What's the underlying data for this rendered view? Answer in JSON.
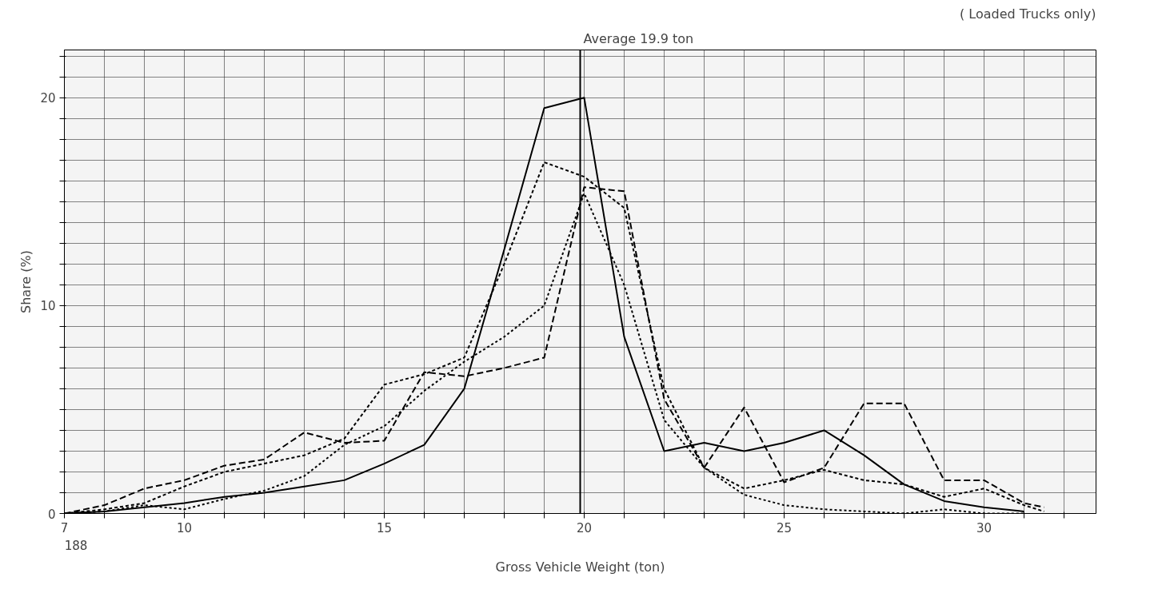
{
  "chart_data": {
    "type": "line",
    "xlabel": "Gross Vehicle Weight (ton)",
    "ylabel": "Share (%)",
    "xlim": [
      7,
      32.8
    ],
    "ylim": [
      0,
      22.3
    ],
    "xticks": [
      7,
      {
        "value": 8,
        "label": null
      },
      {
        "value": 9,
        "label": null
      },
      10,
      {
        "value": 11,
        "label": null
      },
      {
        "value": 12,
        "label": null
      },
      {
        "value": 13,
        "label": null
      },
      {
        "value": 14,
        "label": null
      },
      15,
      {
        "value": 16,
        "label": null
      },
      {
        "value": 17,
        "label": null
      },
      {
        "value": 18,
        "label": null
      },
      {
        "value": 19,
        "label": null
      },
      20,
      {
        "value": 21,
        "label": null
      },
      {
        "value": 22,
        "label": null
      },
      {
        "value": 23,
        "label": null
      },
      {
        "value": 24,
        "label": null
      },
      25,
      {
        "value": 26,
        "label": null
      },
      {
        "value": 27,
        "label": null
      },
      {
        "value": 28,
        "label": null
      },
      {
        "value": 29,
        "label": null
      },
      30,
      {
        "value": 31,
        "label": null
      },
      {
        "value": 32,
        "label": null
      }
    ],
    "yticks": [
      0,
      {
        "value": 1,
        "label": null
      },
      {
        "value": 2,
        "label": null
      },
      {
        "value": 3,
        "label": null
      },
      {
        "value": 4,
        "label": null
      },
      {
        "value": 5,
        "label": null
      },
      {
        "value": 6,
        "label": null
      },
      {
        "value": 7,
        "label": null
      },
      {
        "value": 8,
        "label": null
      },
      {
        "value": 9,
        "label": null
      },
      10,
      {
        "value": 11,
        "label": null
      },
      {
        "value": 12,
        "label": null
      },
      {
        "value": 13,
        "label": null
      },
      {
        "value": 14,
        "label": null
      },
      {
        "value": 15,
        "label": null
      },
      {
        "value": 16,
        "label": null
      },
      {
        "value": 17,
        "label": null
      },
      {
        "value": 18,
        "label": null
      },
      {
        "value": 19,
        "label": null
      },
      20,
      {
        "value": 21,
        "label": null
      },
      {
        "value": 22,
        "label": null
      }
    ],
    "grid": true,
    "marker": "none",
    "series": [
      {
        "color": "#000000",
        "line_style": "solid",
        "x": [
          7,
          8,
          9,
          10,
          11,
          12,
          13,
          14,
          15,
          16,
          17,
          18,
          19,
          20,
          21,
          22,
          23,
          24,
          25,
          26,
          27,
          28,
          29,
          30,
          31
        ],
        "values": [
          0,
          0.1,
          0.3,
          0.5,
          0.8,
          1.0,
          1.3,
          1.6,
          2.4,
          3.3,
          6.0,
          12.7,
          19.5,
          20.0,
          8.5,
          3.0,
          3.4,
          3.0,
          3.4,
          4.0,
          2.8,
          1.4,
          0.6,
          0.3,
          0.1
        ]
      },
      {
        "color": "#000000",
        "line_style": "dashed",
        "x": [
          7,
          8,
          9,
          10,
          11,
          12,
          13,
          14,
          15,
          16,
          17,
          18,
          19,
          20,
          21,
          22,
          23,
          24,
          25,
          26,
          27,
          28,
          29,
          30,
          31,
          31.5
        ],
        "values": [
          0,
          0.4,
          1.2,
          1.6,
          2.3,
          2.6,
          3.9,
          3.4,
          3.5,
          6.8,
          6.6,
          7.0,
          7.5,
          15.7,
          15.5,
          5.5,
          2.2,
          5.1,
          1.5,
          2.2,
          5.3,
          5.3,
          1.6,
          1.6,
          0.5,
          0.3
        ]
      },
      {
        "color": "#000000",
        "line_style": "dashed",
        "x": [
          7,
          8,
          9,
          10,
          11,
          12,
          13,
          14,
          15,
          16,
          17,
          18,
          19,
          20,
          21,
          22,
          23,
          24,
          25,
          26,
          27,
          28,
          29,
          30,
          31,
          31.5
        ],
        "values": [
          0,
          0.2,
          0.5,
          1.3,
          2.0,
          2.4,
          2.8,
          3.6,
          6.2,
          6.7,
          7.5,
          12.0,
          16.9,
          16.2,
          14.7,
          6.0,
          2.2,
          1.2,
          1.6,
          2.1,
          1.6,
          1.4,
          0.8,
          1.2,
          0.4,
          0.1
        ]
      },
      {
        "color": "#000000",
        "line_style": "dotted",
        "x": [
          7,
          8,
          9,
          10,
          11,
          12,
          13,
          14,
          15,
          16,
          17,
          18,
          19,
          20,
          21,
          22,
          23,
          24,
          25,
          26,
          27,
          28,
          29,
          30,
          31
        ],
        "values": [
          0,
          0.1,
          0.4,
          0.2,
          0.7,
          1.1,
          1.8,
          3.3,
          4.2,
          5.9,
          7.3,
          8.5,
          10.0,
          15.4,
          11.0,
          4.5,
          2.2,
          0.9,
          0.4,
          0.2,
          0.1,
          0.0,
          0.2,
          0.0,
          0.0
        ]
      }
    ],
    "ref_lines": [
      {
        "axis": "x",
        "value": 19.9,
        "label": "Average 19.9 ton",
        "color": "#000000"
      }
    ],
    "annotations": [
      "( Loaded Trucks only)",
      "188"
    ]
  }
}
